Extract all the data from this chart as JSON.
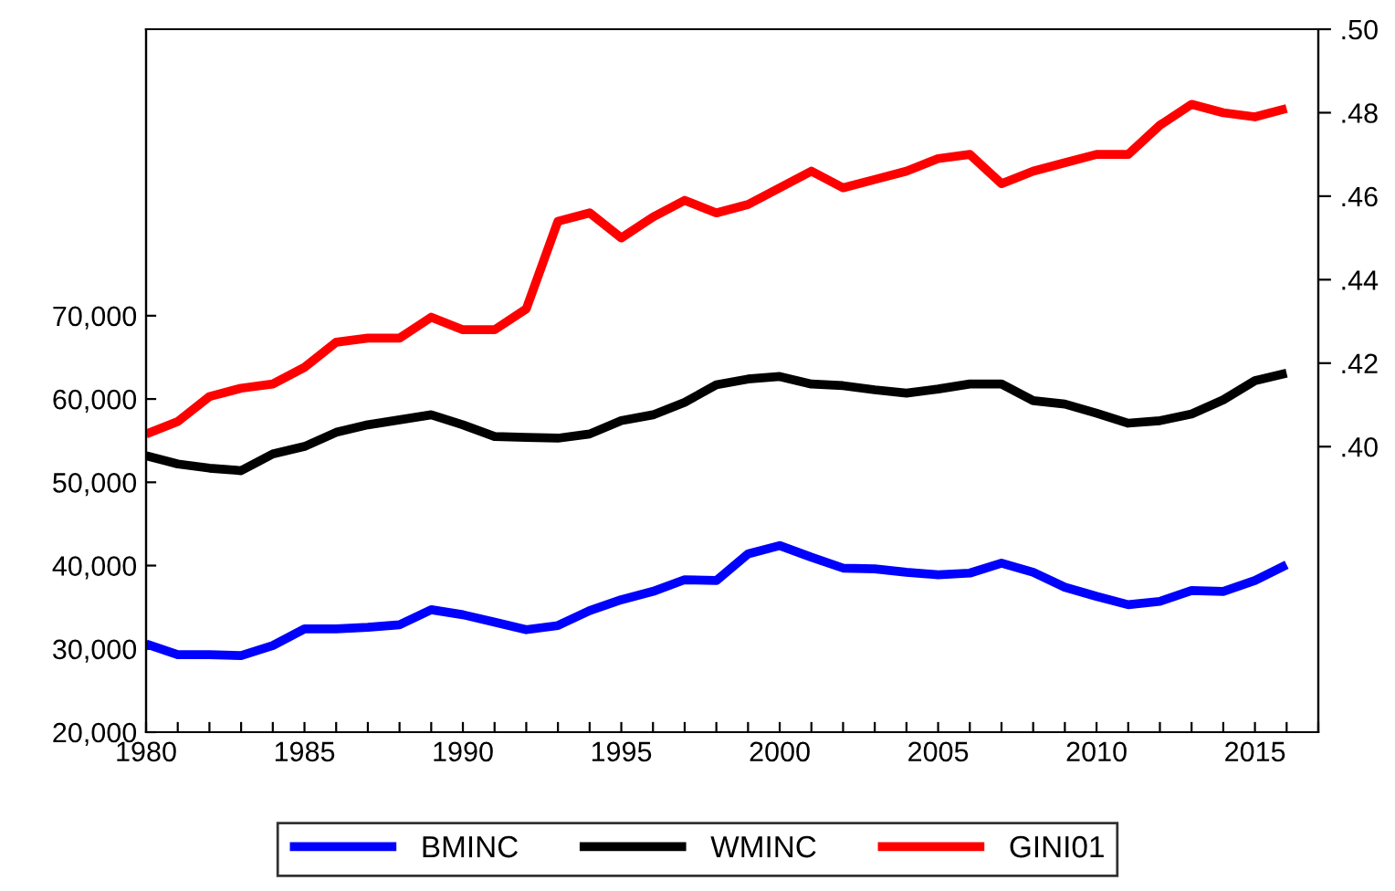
{
  "chart_data": {
    "type": "line",
    "x": [
      1980,
      1981,
      1982,
      1983,
      1984,
      1985,
      1986,
      1987,
      1988,
      1989,
      1990,
      1991,
      1992,
      1993,
      1994,
      1995,
      1996,
      1997,
      1998,
      1999,
      2000,
      2001,
      2002,
      2003,
      2004,
      2005,
      2006,
      2007,
      2008,
      2009,
      2010,
      2011,
      2012,
      2013,
      2014,
      2015,
      2016
    ],
    "series": [
      {
        "name": "BMINC",
        "color": "#0000ff",
        "values": [
          30600,
          29300,
          29300,
          29200,
          30400,
          32400,
          32400,
          32600,
          32900,
          34700,
          34100,
          33200,
          32300,
          32800,
          34600,
          35900,
          36900,
          38300,
          38200,
          41400,
          42400,
          41000,
          39700,
          39600,
          39200,
          38900,
          39100,
          40300,
          39200,
          37400,
          36300,
          35300,
          35700,
          37000,
          36900,
          38200,
          40100
        ]
      },
      {
        "name": "WMINC",
        "color": "#000000",
        "values": [
          53200,
          52200,
          51700,
          51400,
          53400,
          54300,
          56000,
          56900,
          57500,
          58100,
          56900,
          55500,
          55400,
          55300,
          55800,
          57400,
          58100,
          59600,
          61700,
          62400,
          62700,
          61800,
          61600,
          61100,
          60700,
          61200,
          61800,
          61800,
          59800,
          59400,
          58300,
          57100,
          57400,
          58200,
          59900,
          62200,
          63100
        ]
      },
      {
        "name": "GINI01",
        "color": "#ff0000",
        "axis": "y2",
        "values": [
          0.403,
          0.406,
          0.412,
          0.414,
          0.415,
          0.419,
          0.425,
          0.426,
          0.426,
          0.431,
          0.428,
          0.428,
          0.433,
          0.454,
          0.456,
          0.45,
          0.455,
          0.459,
          0.456,
          0.458,
          0.462,
          0.466,
          0.462,
          0.464,
          0.466,
          0.469,
          0.47,
          0.463,
          0.466,
          0.468,
          0.47,
          0.47,
          0.477,
          0.482,
          0.48,
          0.479,
          0.481
        ]
      }
    ],
    "xlim": [
      1980,
      2017
    ],
    "xticks": [
      1980,
      {
        "value": 1981,
        "label": null
      },
      {
        "value": 1982,
        "label": null
      },
      {
        "value": 1983,
        "label": null
      },
      {
        "value": 1984,
        "label": null
      },
      1985,
      {
        "value": 1986,
        "label": null
      },
      {
        "value": 1987,
        "label": null
      },
      {
        "value": 1988,
        "label": null
      },
      {
        "value": 1989,
        "label": null
      },
      1990,
      {
        "value": 1991,
        "label": null
      },
      {
        "value": 1992,
        "label": null
      },
      {
        "value": 1993,
        "label": null
      },
      {
        "value": 1994,
        "label": null
      },
      1995,
      {
        "value": 1996,
        "label": null
      },
      {
        "value": 1997,
        "label": null
      },
      {
        "value": 1998,
        "label": null
      },
      {
        "value": 1999,
        "label": null
      },
      2000,
      {
        "value": 2001,
        "label": null
      },
      {
        "value": 2002,
        "label": null
      },
      {
        "value": 2003,
        "label": null
      },
      {
        "value": 2004,
        "label": null
      },
      2005,
      {
        "value": 2006,
        "label": null
      },
      {
        "value": 2007,
        "label": null
      },
      {
        "value": 2008,
        "label": null
      },
      {
        "value": 2009,
        "label": null
      },
      2010,
      {
        "value": 2011,
        "label": null
      },
      {
        "value": 2012,
        "label": null
      },
      {
        "value": 2013,
        "label": null
      },
      {
        "value": 2014,
        "label": null
      },
      2015,
      {
        "value": 2016,
        "label": null
      },
      {
        "value": 2017,
        "label": null
      }
    ],
    "ylim": [
      20000,
      104400
    ],
    "yticks": [
      {
        "value": 20000,
        "label": "20,000"
      },
      {
        "value": 30000,
        "label": "30,000"
      },
      {
        "value": 40000,
        "label": "40,000"
      },
      {
        "value": 50000,
        "label": "50,000"
      },
      {
        "value": 60000,
        "label": "60,000"
      },
      {
        "value": 70000,
        "label": "70,000"
      }
    ],
    "y2lim": [
      0.3316,
      0.5
    ],
    "y2ticks": [
      {
        "value": 0.4,
        "label": ".40"
      },
      {
        "value": 0.42,
        "label": ".42"
      },
      {
        "value": 0.44,
        "label": ".44"
      },
      {
        "value": 0.46,
        "label": ".46"
      },
      {
        "value": 0.48,
        "label": ".48"
      },
      {
        "value": 0.5,
        "label": ".50"
      }
    ],
    "grid": false,
    "legend": "bottom",
    "marker": "none",
    "line_style": "solid"
  }
}
